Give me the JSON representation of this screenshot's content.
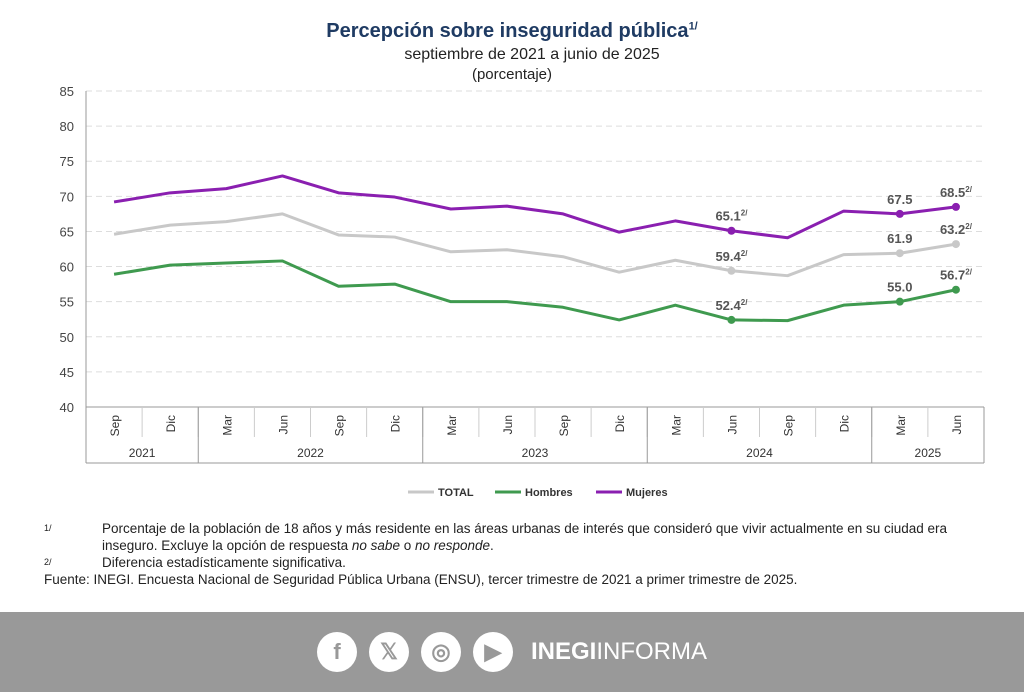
{
  "chart_data": {
    "type": "line",
    "title": "Percepción sobre inseguridad pública",
    "title_note": "1/",
    "subtitle": "septiembre de 2021 a junio de 2025",
    "unit": "(porcentaje)",
    "ylim": [
      40,
      85
    ],
    "yticks": [
      40,
      45,
      50,
      55,
      60,
      65,
      70,
      75,
      80,
      85
    ],
    "grid": true,
    "legend_placement": "bottom",
    "categories": [
      "Sep",
      "Dic",
      "Mar",
      "Jun",
      "Sep",
      "Dic",
      "Mar",
      "Jun",
      "Sep",
      "Dic",
      "Mar",
      "Jun",
      "Sep",
      "Dic",
      "Mar",
      "Jun"
    ],
    "years": [
      {
        "label": "2021",
        "span": 2
      },
      {
        "label": "2022",
        "span": 4
      },
      {
        "label": "2023",
        "span": 4
      },
      {
        "label": "2024",
        "span": 4
      },
      {
        "label": "2025",
        "span": 2
      }
    ],
    "series": [
      {
        "name": "TOTAL",
        "color": "#c8c8c8",
        "values": [
          64.6,
          65.9,
          66.4,
          67.5,
          64.5,
          64.2,
          62.1,
          62.4,
          61.4,
          59.2,
          60.9,
          59.4,
          58.7,
          61.7,
          61.9,
          63.2
        ],
        "labels": [
          {
            "i": 11,
            "text": "59.4",
            "note": "2/"
          },
          {
            "i": 14,
            "text": "61.9",
            "note": ""
          },
          {
            "i": 15,
            "text": "63.2",
            "note": "2/"
          }
        ]
      },
      {
        "name": "Hombres",
        "color": "#3f9a4f",
        "values": [
          58.9,
          60.2,
          60.5,
          60.8,
          57.2,
          57.5,
          55.0,
          55.0,
          54.2,
          52.4,
          54.5,
          52.4,
          52.3,
          54.5,
          55.0,
          56.7
        ],
        "labels": [
          {
            "i": 11,
            "text": "52.4",
            "note": "2/"
          },
          {
            "i": 14,
            "text": "55.0",
            "note": ""
          },
          {
            "i": 15,
            "text": "56.7",
            "note": "2/"
          }
        ]
      },
      {
        "name": "Mujeres",
        "color": "#8a1fb0",
        "values": [
          69.2,
          70.5,
          71.1,
          72.9,
          70.5,
          69.9,
          68.2,
          68.6,
          67.5,
          64.9,
          66.5,
          65.1,
          64.1,
          67.9,
          67.5,
          68.5
        ],
        "labels": [
          {
            "i": 11,
            "text": "65.1",
            "note": "2/"
          },
          {
            "i": 14,
            "text": "67.5",
            "note": ""
          },
          {
            "i": 15,
            "text": "68.5",
            "note": "2/"
          }
        ]
      }
    ]
  },
  "notes": {
    "n1_mark": "1/",
    "n1_a": "Porcentaje de la población de 18 años y más residente en las áreas urbanas de interés que consideró que vivir actualmente en su ciudad era inseguro. Excluye la opción de respuesta ",
    "n1_i1": "no sabe",
    "n1_b": " o ",
    "n1_i2": "no responde",
    "n1_c": ".",
    "n2_mark": "2/",
    "n2": "Diferencia estadísticamente significativa.",
    "source": "Fuente: INEGI. Encuesta Nacional de Seguridad Pública Urbana (ENSU), tercer trimestre de 2021 a primer trimestre de 2025."
  },
  "footer": {
    "brand_bold": "INEGI",
    "brand_light": "INFORMA",
    "icons": [
      "facebook-icon",
      "x-icon",
      "instagram-icon",
      "youtube-icon"
    ]
  }
}
